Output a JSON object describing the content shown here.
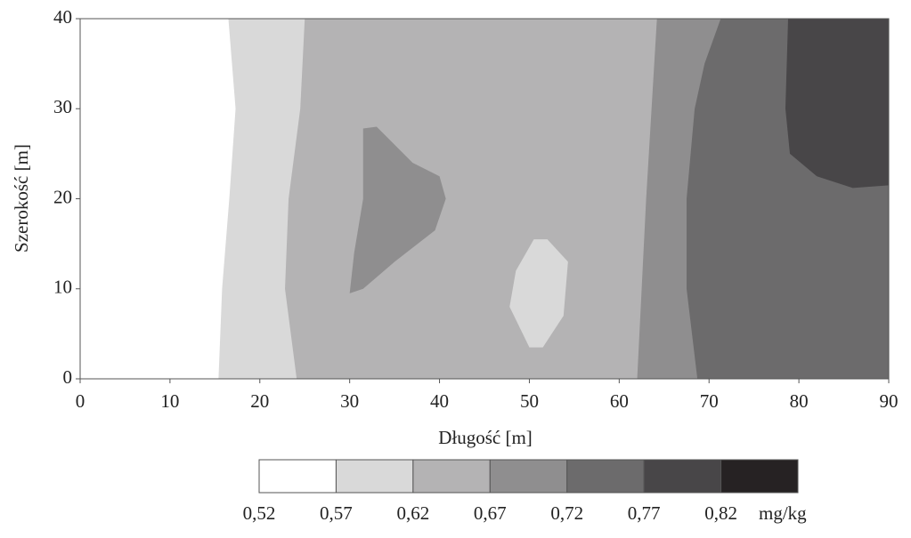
{
  "chart_data": {
    "type": "contour",
    "xlabel": "Długość [m]",
    "ylabel": "Szerokość [m]",
    "xlim": [
      0,
      90
    ],
    "ylim": [
      0,
      40
    ],
    "xticks": [
      0,
      10,
      20,
      30,
      40,
      50,
      60,
      70,
      80,
      90
    ],
    "yticks": [
      0,
      10,
      20,
      30,
      40
    ],
    "levels": [
      {
        "value": 0.52,
        "label": "0,52"
      },
      {
        "value": 0.57,
        "label": "0,57"
      },
      {
        "value": 0.62,
        "label": "0,62"
      },
      {
        "value": 0.67,
        "label": "0,67"
      },
      {
        "value": 0.72,
        "label": "0,72"
      },
      {
        "value": 0.77,
        "label": "0,77"
      },
      {
        "value": 0.82,
        "label": "0,82"
      }
    ],
    "colors": [
      "#ffffff",
      "#d9d9d9",
      "#b4b3b4",
      "#8f8e8f",
      "#6c6b6c",
      "#484648",
      "#262223"
    ],
    "unit": "mg/kg",
    "regions": [
      {
        "level": 0,
        "x": [
          0,
          90,
          90,
          0
        ],
        "y": [
          0,
          0,
          40,
          40
        ]
      },
      {
        "level": 1,
        "x": [
          16.5,
          17.3,
          16.6,
          15.8,
          15.4,
          90,
          90
        ],
        "y": [
          40,
          30,
          20,
          10,
          0,
          0,
          40
        ]
      },
      {
        "level": 2,
        "x": [
          25,
          24.5,
          23.2,
          22.8,
          24.1,
          90,
          90
        ],
        "y": [
          40,
          30,
          20,
          10,
          0,
          0,
          40
        ]
      },
      {
        "level": 3,
        "x": [
          64.2,
          63.6,
          63,
          62.5,
          62,
          90,
          90
        ],
        "y": [
          40,
          30,
          20,
          10,
          0,
          0,
          40
        ]
      },
      {
        "level": 3,
        "x": [
          31.5,
          33,
          37,
          40,
          40.7,
          39.5,
          35,
          31.5,
          30,
          30.5,
          31.5,
          31.5
        ],
        "y": [
          27.8,
          28,
          24,
          22.5,
          20,
          16.5,
          13,
          10,
          9.5,
          14,
          20,
          25
        ]
      },
      {
        "level": 1,
        "x": [
          52,
          54.3,
          53.8,
          51.5,
          50,
          47.8,
          48.5,
          50.5
        ],
        "y": [
          15.5,
          13,
          7,
          3.5,
          3.5,
          8,
          12,
          15.5
        ]
      },
      {
        "level": 4,
        "x": [
          71.3,
          69.5,
          68.4,
          67.5,
          67.5,
          68.7,
          90,
          90
        ],
        "y": [
          40,
          35,
          30,
          20,
          10,
          0,
          0,
          40
        ]
      },
      {
        "level": 5,
        "x": [
          78.8,
          78.5,
          79,
          82,
          86,
          90,
          90
        ],
        "y": [
          40,
          30,
          25,
          22.5,
          21.2,
          21.5,
          40
        ]
      }
    ]
  }
}
